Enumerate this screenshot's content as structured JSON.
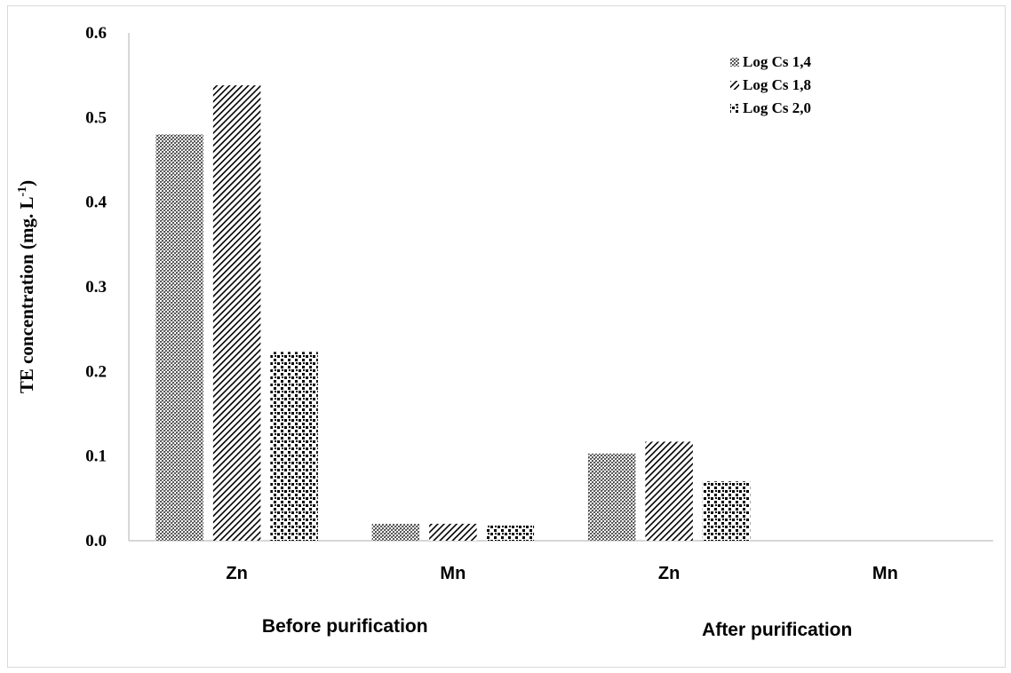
{
  "chart_data": {
    "type": "bar",
    "ylabel": "TE concentration (mg. L",
    "ylabel_sup": "-1",
    "ylabel_close": ")",
    "ylim": [
      0,
      0.6
    ],
    "yticks": [
      "0.0",
      "0.1",
      "0.2",
      "0.3",
      "0.4",
      "0.5",
      "0.6"
    ],
    "grid": false,
    "legend_position": "top-right",
    "groups": [
      {
        "label": "Before purification",
        "categories": [
          "Zn",
          "Mn"
        ]
      },
      {
        "label": "After purification",
        "categories": [
          "Zn",
          "Mn"
        ]
      }
    ],
    "categories": [
      "Zn",
      "Mn",
      "Zn",
      "Mn"
    ],
    "series": [
      {
        "name": "Log Cs 1,4",
        "values": [
          0.48,
          0.02,
          0.103,
          0
        ],
        "pattern": "crosshatch-dots"
      },
      {
        "name": "Log Cs 1,8",
        "values": [
          0.538,
          0.02,
          0.117,
          0
        ],
        "pattern": "diagonal-lines"
      },
      {
        "name": "Log Cs 2,0",
        "values": [
          0.223,
          0.018,
          0.07,
          0
        ],
        "pattern": "sparse-squares"
      }
    ]
  }
}
